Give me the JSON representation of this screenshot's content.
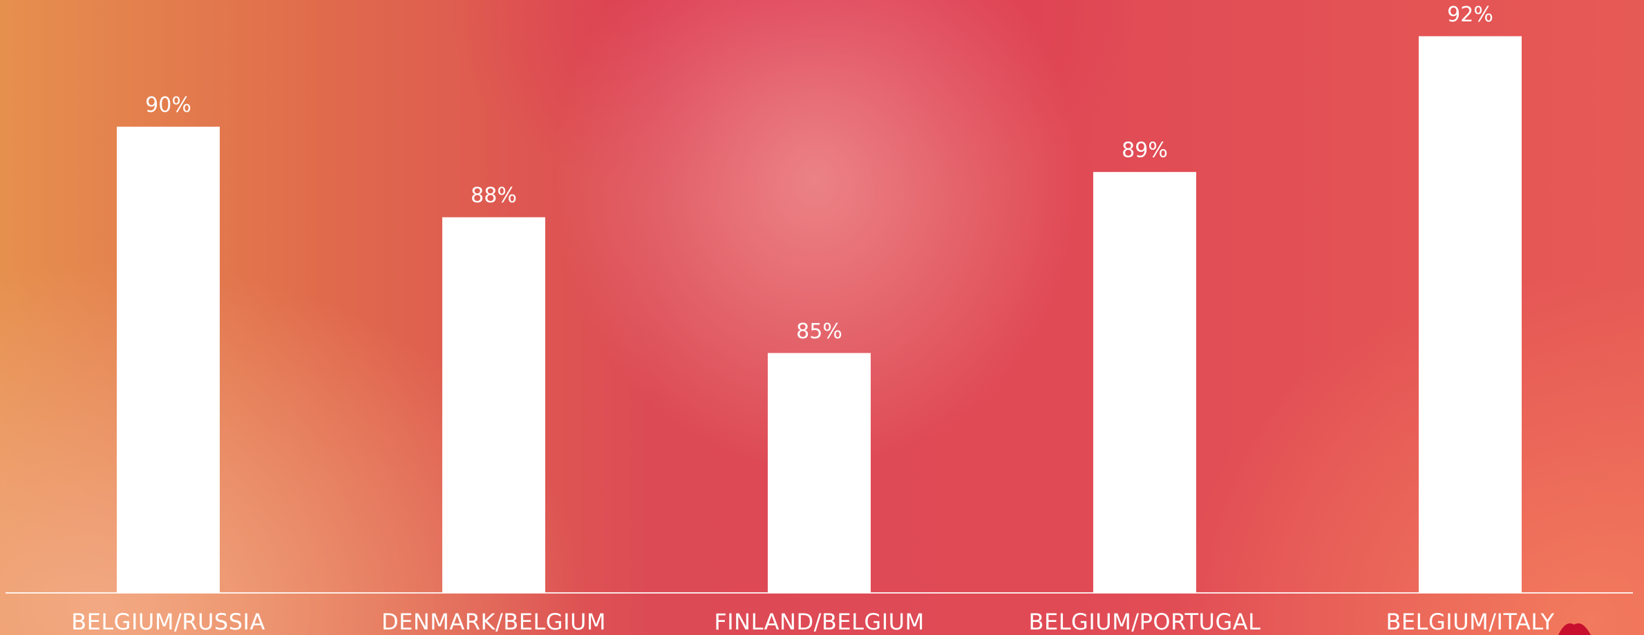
{
  "chart_data": {
    "type": "bar",
    "categories": [
      "BELGIUM/RUSSIA",
      "DENMARK/BELGIUM",
      "FINLAND/BELGIUM",
      "BELGIUM/PORTUGAL",
      "BELGIUM/ITALY"
    ],
    "values": [
      90,
      88,
      85,
      89,
      92
    ],
    "value_labels": [
      "90%",
      "88%",
      "85%",
      "89%",
      "92%"
    ],
    "color": "#ffffff",
    "ylim": [
      79.7,
      92.8
    ]
  }
}
